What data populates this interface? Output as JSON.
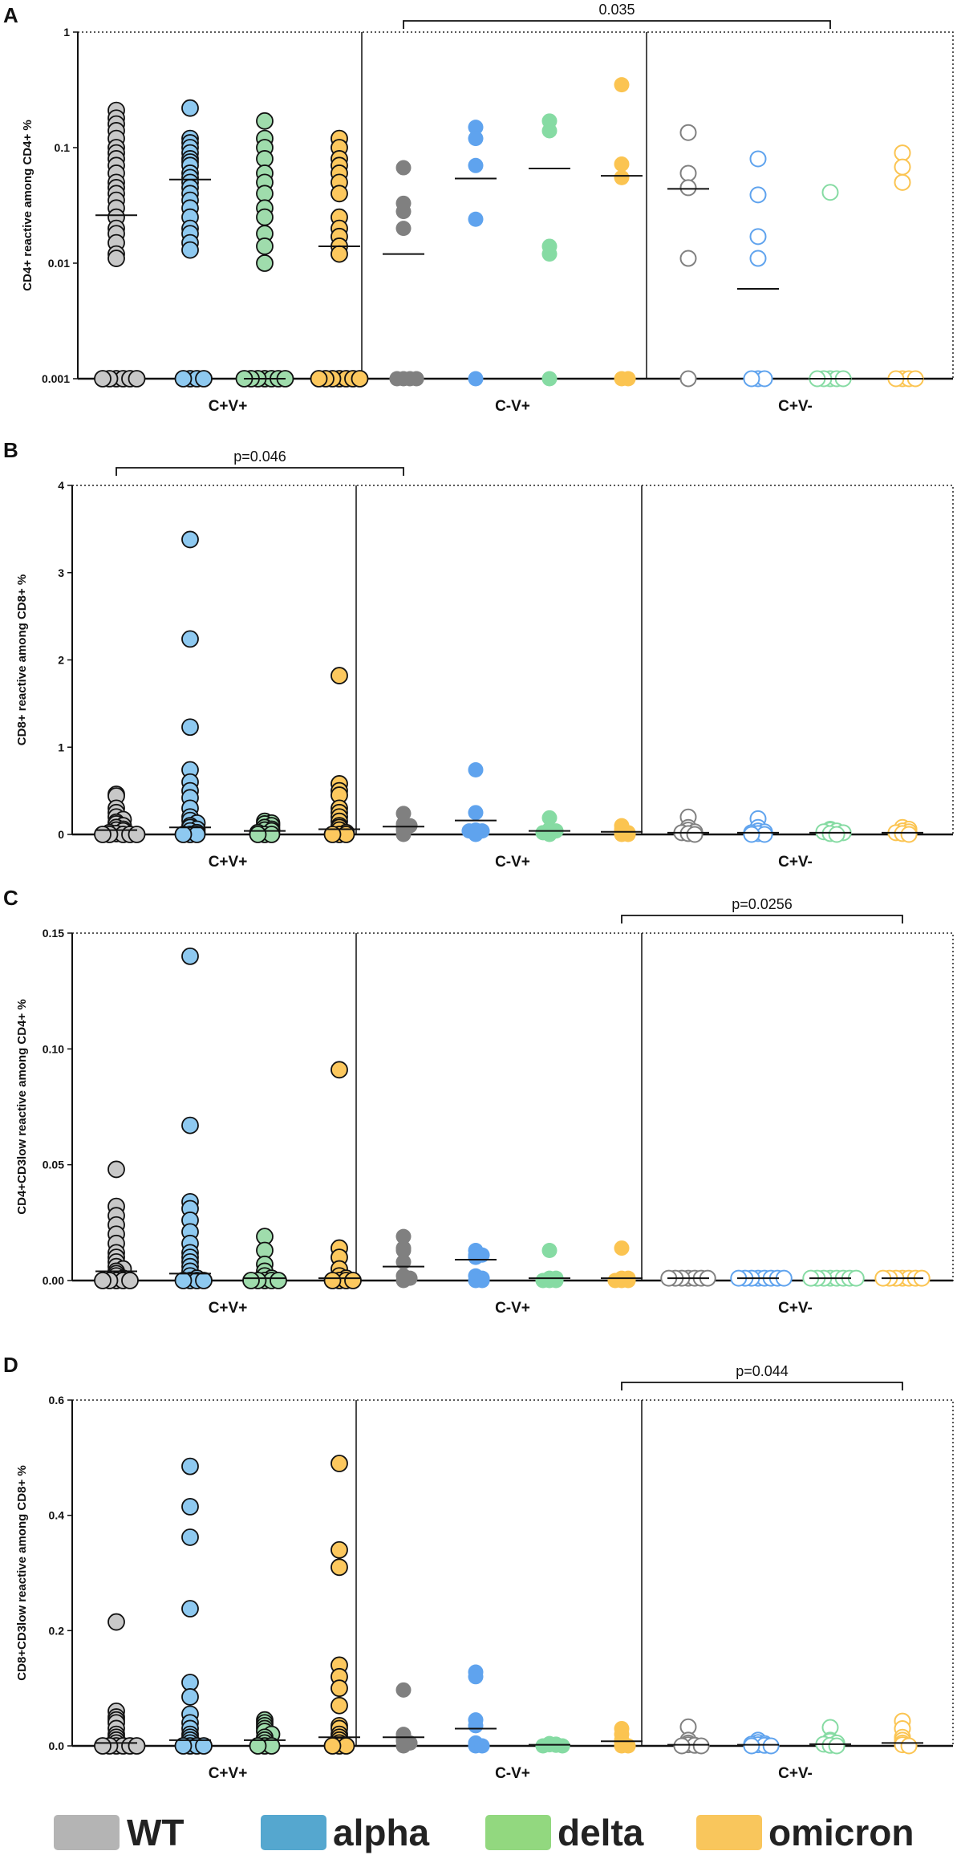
{
  "colors": {
    "WT": "#c8c8c8",
    "WT_dark": "#808080",
    "alpha": "#8ec9f0",
    "alpha_dark": "#5fa3ee",
    "delta": "#9fdcac",
    "delta_dark": "#86dba3",
    "omicron": "#fcc85e",
    "omicron_dark": "#fbc451",
    "WT_legend": "#b4b4b4",
    "alpha_legend": "#55a7cf",
    "delta_legend": "#92d87f",
    "omicron_legend": "#f9c65c"
  },
  "legend": [
    {
      "key": "WT",
      "label": "WT"
    },
    {
      "key": "alpha",
      "label": "alpha"
    },
    {
      "key": "delta",
      "label": "delta"
    },
    {
      "key": "omicron",
      "label": "omicron"
    }
  ],
  "chart_data": [
    {
      "panel_label": "A",
      "type": "scatter",
      "yscale": "log",
      "ylabel": "CD4+ reactive among CD4+ %",
      "ylim": [
        0.001,
        1
      ],
      "yticks": [
        "1",
        "0.1",
        "0.01",
        "0.001"
      ],
      "ytick_values": [
        1,
        0.1,
        0.01,
        0.001
      ],
      "groups": [
        "C+V+",
        "C-V+",
        "C+V-"
      ],
      "series_order": [
        "WT",
        "alpha",
        "delta",
        "omicron"
      ],
      "significance": [
        {
          "label": "0.035",
          "from_group": 1,
          "from_series": 0,
          "to_group": 2,
          "to_series": 2
        }
      ],
      "data": {
        "C+V+": {
          "WT": {
            "values": [
              0.21,
              0.18,
              0.16,
              0.14,
              0.12,
              0.1,
              0.09,
              0.08,
              0.07,
              0.06,
              0.05,
              0.045,
              0.04,
              0.035,
              0.03,
              0.025,
              0.02,
              0.018,
              0.015,
              0.012,
              0.011,
              0.001,
              0.001,
              0.001,
              0.001,
              0.001,
              0.001
            ],
            "median": 0.026
          },
          "alpha": {
            "values": [
              0.22,
              0.12,
              0.11,
              0.1,
              0.09,
              0.08,
              0.075,
              0.07,
              0.06,
              0.055,
              0.05,
              0.045,
              0.04,
              0.035,
              0.03,
              0.025,
              0.02,
              0.018,
              0.015,
              0.013,
              0.001,
              0.001,
              0.001,
              0.001
            ],
            "median": 0.053
          },
          "delta": {
            "values": [
              0.17,
              0.12,
              0.1,
              0.08,
              0.06,
              0.05,
              0.04,
              0.03,
              0.025,
              0.018,
              0.014,
              0.01,
              0.001,
              0.001,
              0.001,
              0.001,
              0.001,
              0.001,
              0.001
            ],
            "median": 0.001
          },
          "omicron": {
            "values": [
              0.12,
              0.1,
              0.08,
              0.07,
              0.06,
              0.05,
              0.04,
              0.025,
              0.02,
              0.017,
              0.014,
              0.012,
              0.001,
              0.001,
              0.001,
              0.001,
              0.001,
              0.001,
              0.001
            ],
            "median": 0.014
          }
        },
        "C-V+": {
          "WT": {
            "values": [
              0.067,
              0.033,
              0.028,
              0.02,
              0.001,
              0.001,
              0.001,
              0.001
            ],
            "median": 0.012
          },
          "alpha": {
            "values": [
              0.15,
              0.12,
              0.07,
              0.024,
              0.001
            ],
            "median": 0.054
          },
          "delta": {
            "values": [
              0.17,
              0.14,
              0.014,
              0.012,
              0.001
            ],
            "median": 0.066
          },
          "omicron": {
            "values": [
              0.35,
              0.072,
              0.055,
              0.001,
              0.001
            ],
            "median": 0.057
          }
        },
        "C+V-": {
          "WT": {
            "values": [
              0.135,
              0.06,
              0.045,
              0.011,
              0.001
            ],
            "median": 0.044
          },
          "alpha": {
            "values": [
              0.08,
              0.039,
              0.017,
              0.011,
              0.001,
              0.001,
              0.001
            ],
            "median": 0.006
          },
          "delta": {
            "values": [
              0.041,
              0.001,
              0.001,
              0.001,
              0.001,
              0.001
            ],
            "median": 0.001
          },
          "omicron": {
            "values": [
              0.09,
              0.068,
              0.05,
              0.001,
              0.001,
              0.001,
              0.001
            ],
            "median": 0.001
          }
        }
      }
    },
    {
      "panel_label": "B",
      "type": "scatter",
      "yscale": "linear",
      "ylabel": "CD8+ reactive among CD8+ %",
      "ylim": [
        0,
        4
      ],
      "yticks": [
        "4",
        "3",
        "2",
        "1",
        "0"
      ],
      "ytick_values": [
        4,
        3,
        2,
        1,
        0
      ],
      "groups": [
        "C+V+",
        "C-V+",
        "C+V-"
      ],
      "series_order": [
        "WT",
        "alpha",
        "delta",
        "omicron"
      ],
      "significance": [
        {
          "label": "p=0.046",
          "from_group": 0,
          "from_series": 0,
          "to_group": 1,
          "to_series": 0
        }
      ],
      "data": {
        "C+V+": {
          "WT": {
            "values": [
              0.46,
              0.44,
              0.3,
              0.25,
              0.2,
              0.17,
              0.14,
              0.12,
              0.1,
              0.08,
              0.06,
              0.05,
              0.04,
              0.02,
              0.01,
              0,
              0,
              0,
              0,
              0
            ],
            "median": 0.05
          },
          "alpha": {
            "values": [
              3.38,
              2.24,
              1.23,
              0.74,
              0.6,
              0.5,
              0.42,
              0.3,
              0.2,
              0.16,
              0.13,
              0.1,
              0.08,
              0.06,
              0.04,
              0.02,
              0,
              0,
              0
            ],
            "median": 0.08
          },
          "delta": {
            "values": [
              0.15,
              0.13,
              0.12,
              0.1,
              0.08,
              0.06,
              0.05,
              0.04,
              0.02,
              0,
              0,
              0
            ],
            "median": 0.04
          },
          "omicron": {
            "values": [
              1.82,
              0.58,
              0.5,
              0.45,
              0.3,
              0.25,
              0.2,
              0.15,
              0.1,
              0.08,
              0.05,
              0.02,
              0,
              0,
              0
            ],
            "median": 0.06
          }
        },
        "C-V+": {
          "WT": {
            "values": [
              0.24,
              0.12,
              0.1,
              0.08,
              0.05,
              0
            ],
            "median": 0.09
          },
          "alpha": {
            "values": [
              0.74,
              0.25,
              0.05,
              0.04,
              0.04,
              0
            ],
            "median": 0.16
          },
          "delta": {
            "values": [
              0.19,
              0.06,
              0.05,
              0.04,
              0.02,
              0
            ],
            "median": 0.04
          },
          "omicron": {
            "values": [
              0.1,
              0.06,
              0.04,
              0.02,
              0,
              0
            ],
            "median": 0.03
          }
        },
        "C+V-": {
          "WT": {
            "values": [
              0.2,
              0.08,
              0.05,
              0.03,
              0.02,
              0.01,
              0
            ],
            "median": 0.02
          },
          "alpha": {
            "values": [
              0.18,
              0.08,
              0.04,
              0.03,
              0.02,
              0.01,
              0,
              0
            ],
            "median": 0.02
          },
          "delta": {
            "values": [
              0.06,
              0.05,
              0.04,
              0.03,
              0.02,
              0.01,
              0
            ],
            "median": 0.02
          },
          "omicron": {
            "values": [
              0.08,
              0.06,
              0.04,
              0.03,
              0.02,
              0.01,
              0
            ],
            "median": 0.02
          }
        }
      }
    },
    {
      "panel_label": "C",
      "type": "scatter",
      "yscale": "linear",
      "ylabel": "CD4+CD3low reactive among CD4+ %",
      "ylim": [
        0,
        0.15
      ],
      "yticks": [
        "0.15",
        "0.10",
        "0.05",
        "0.00"
      ],
      "ytick_values": [
        0.15,
        0.1,
        0.05,
        0
      ],
      "groups": [
        "C+V+",
        "C-V+",
        "C+V-"
      ],
      "series_order": [
        "WT",
        "alpha",
        "delta",
        "omicron"
      ],
      "significance": [
        {
          "label": "p=0.0256",
          "from_group": 1,
          "from_series": 3,
          "to_group": 2,
          "to_series": 3
        }
      ],
      "data": {
        "C+V+": {
          "WT": {
            "values": [
              0.048,
              0.032,
              0.028,
              0.024,
              0.02,
              0.016,
              0.012,
              0.01,
              0.008,
              0.006,
              0.005,
              0.004,
              0.003,
              0.002,
              0.001,
              0,
              0,
              0,
              0,
              0
            ],
            "median": 0.004
          },
          "alpha": {
            "values": [
              0.14,
              0.067,
              0.034,
              0.031,
              0.026,
              0.021,
              0.016,
              0.012,
              0.01,
              0.008,
              0.006,
              0.004,
              0.002,
              0.001,
              0,
              0,
              0,
              0
            ],
            "median": 0.003
          },
          "delta": {
            "values": [
              0.019,
              0.013,
              0.007,
              0.004,
              0.002,
              0.001,
              0,
              0,
              0,
              0,
              0
            ],
            "median": 0.001
          },
          "omicron": {
            "values": [
              0.091,
              0.014,
              0.01,
              0.005,
              0.002,
              0.001,
              0,
              0,
              0,
              0
            ],
            "median": 0.001
          }
        },
        "C-V+": {
          "WT": {
            "values": [
              0.019,
              0.014,
              0.013,
              0.008,
              0.002,
              0.001,
              0
            ],
            "median": 0.006
          },
          "alpha": {
            "values": [
              0.013,
              0.011,
              0.011,
              0.01,
              0.002,
              0.001,
              0,
              0
            ],
            "median": 0.009
          },
          "delta": {
            "values": [
              0.013,
              0.001,
              0.001,
              0,
              0,
              0
            ],
            "median": 0.001
          },
          "omicron": {
            "values": [
              0.014,
              0.001,
              0.001,
              0,
              0,
              0
            ],
            "median": 0.001
          }
        },
        "C+V-": {
          "WT": {
            "values": [
              0.001,
              0.001,
              0.001,
              0.001,
              0.001,
              0.001,
              0.001
            ],
            "median": 0.001
          },
          "alpha": {
            "values": [
              0.001,
              0.001,
              0.001,
              0.001,
              0.001,
              0.001,
              0.001,
              0.001
            ],
            "median": 0.001
          },
          "delta": {
            "values": [
              0.001,
              0.001,
              0.001,
              0.001,
              0.001,
              0.001,
              0.001,
              0.001
            ],
            "median": 0.001
          },
          "omicron": {
            "values": [
              0.001,
              0.001,
              0.001,
              0.001,
              0.001,
              0.001,
              0.001
            ],
            "median": 0.001
          }
        }
      }
    },
    {
      "panel_label": "D",
      "type": "scatter",
      "yscale": "linear",
      "ylabel": "CD8+CD3low reactive among CD8+ %",
      "ylim": [
        0,
        0.6
      ],
      "yticks": [
        "0.6",
        "0.4",
        "0.2",
        "0.0"
      ],
      "ytick_values": [
        0.6,
        0.4,
        0.2,
        0
      ],
      "groups": [
        "C+V+",
        "C-V+",
        "C+V-"
      ],
      "series_order": [
        "WT",
        "alpha",
        "delta",
        "omicron"
      ],
      "significance": [
        {
          "label": "p=0.044",
          "from_group": 1,
          "from_series": 3,
          "to_group": 2,
          "to_series": 3
        }
      ],
      "data": {
        "C+V+": {
          "WT": {
            "values": [
              0.215,
              0.06,
              0.05,
              0.045,
              0.04,
              0.03,
              0.02,
              0.015,
              0.01,
              0.005,
              0,
              0,
              0,
              0,
              0,
              0
            ],
            "median": 0.005
          },
          "alpha": {
            "values": [
              0.485,
              0.415,
              0.362,
              0.238,
              0.11,
              0.085,
              0.055,
              0.04,
              0.03,
              0.02,
              0.015,
              0.01,
              0.005,
              0,
              0,
              0,
              0
            ],
            "median": 0.01
          },
          "delta": {
            "values": [
              0.045,
              0.04,
              0.035,
              0.03,
              0.025,
              0.02,
              0.015,
              0.01,
              0.005,
              0,
              0,
              0
            ],
            "median": 0.01
          },
          "omicron": {
            "values": [
              0.49,
              0.34,
              0.31,
              0.14,
              0.12,
              0.1,
              0.07,
              0.035,
              0.03,
              0.02,
              0.015,
              0.01,
              0.005,
              0,
              0,
              0
            ],
            "median": 0.015
          }
        },
        "C-V+": {
          "WT": {
            "values": [
              0.097,
              0.02,
              0.015,
              0.01,
              0.008,
              0.005,
              0
            ],
            "median": 0.015
          },
          "alpha": {
            "values": [
              0.128,
              0.12,
              0.045,
              0.035,
              0.005,
              0,
              0
            ],
            "median": 0.03
          },
          "delta": {
            "values": [
              0.004,
              0.003,
              0.002,
              0.001,
              0,
              0
            ],
            "median": 0.002
          },
          "omicron": {
            "values": [
              0.03,
              0.02,
              0.01,
              0.005,
              0,
              0
            ],
            "median": 0.008
          }
        },
        "C+V-": {
          "WT": {
            "values": [
              0.033,
              0.01,
              0.005,
              0.002,
              0.001,
              0,
              0
            ],
            "median": 0.002
          },
          "alpha": {
            "values": [
              0.01,
              0.006,
              0.004,
              0.003,
              0.002,
              0.001,
              0,
              0
            ],
            "median": 0.002
          },
          "delta": {
            "values": [
              0.032,
              0.01,
              0.008,
              0.005,
              0.003,
              0.001,
              0
            ],
            "median": 0.003
          },
          "omicron": {
            "values": [
              0.043,
              0.03,
              0.015,
              0.01,
              0.005,
              0.002,
              0
            ],
            "median": 0.005
          }
        }
      }
    }
  ]
}
